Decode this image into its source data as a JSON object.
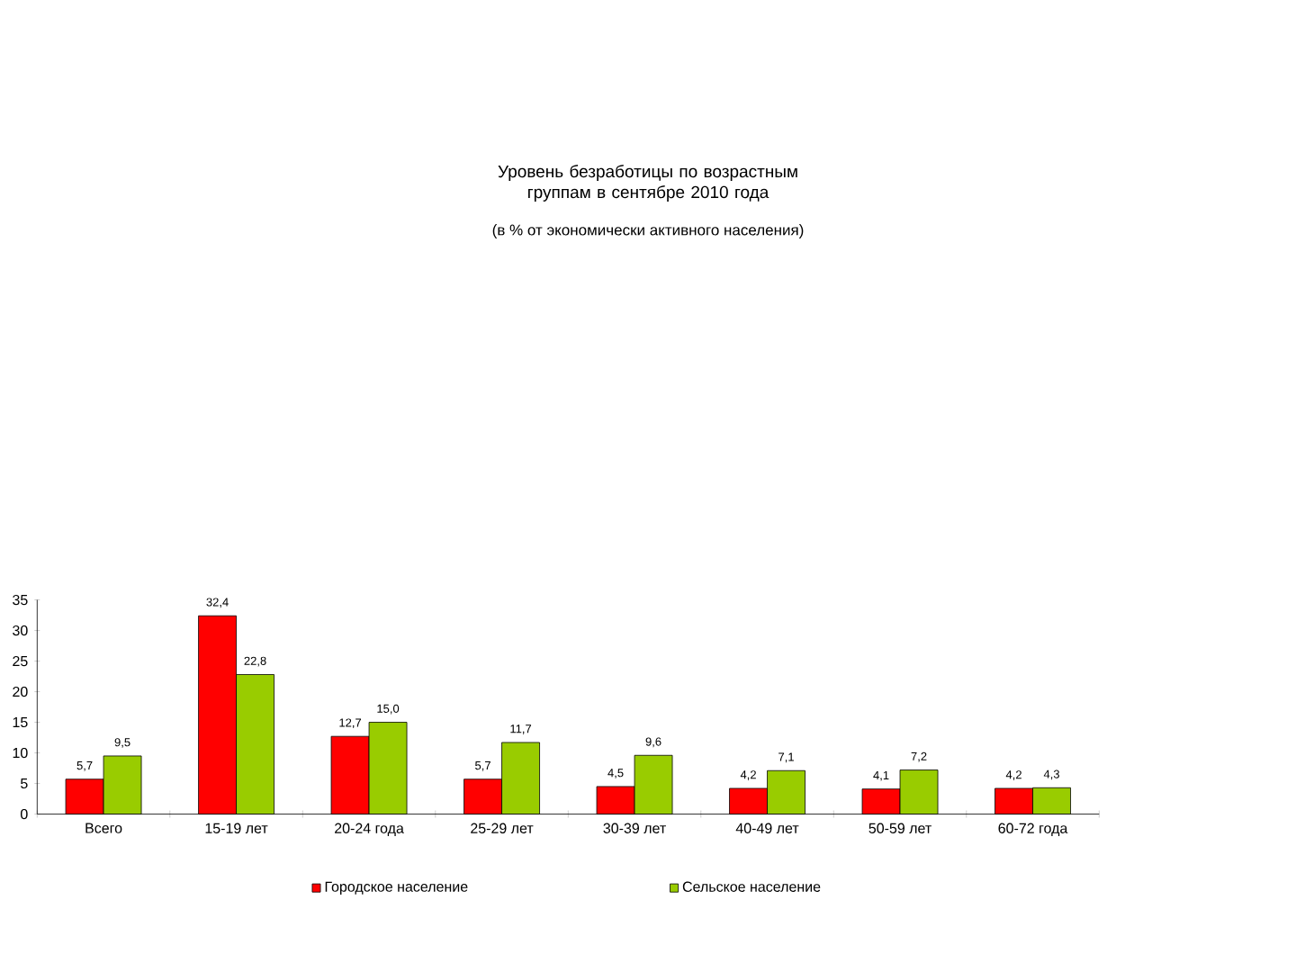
{
  "chart_data": {
    "type": "bar",
    "title": "Уровень безработицы по возрастным группам в сентябре 2010 года",
    "subtitle": "(в % от экономически активного населения)",
    "categories": [
      "Всего",
      "15-19 лет",
      "20-24 года",
      "25-29 лет",
      "30-39 лет",
      "40-49 лет",
      "50-59 лет",
      "60-72 года"
    ],
    "series": [
      {
        "name": "Городское население",
        "color": "#ff0000",
        "values": [
          5.7,
          32.4,
          12.7,
          5.7,
          4.5,
          4.2,
          4.1,
          4.2
        ],
        "value_labels": [
          "5,7",
          "32,4",
          "12,7",
          "5,7",
          "4,5",
          "4,2",
          "4,1",
          "4,2"
        ]
      },
      {
        "name": "Сельское население",
        "color": "#99cc00",
        "values": [
          9.5,
          22.8,
          15.0,
          11.7,
          9.6,
          7.1,
          7.2,
          4.3
        ],
        "value_labels": [
          "9,5",
          "22,8",
          "15,0",
          "11,7",
          "9,6",
          "7,1",
          "7,2",
          "4,3"
        ]
      }
    ],
    "ylim": [
      0,
      35
    ],
    "yticks": [
      0,
      5,
      10,
      15,
      20,
      25,
      30,
      35
    ],
    "legend": "bottom",
    "grid": false
  }
}
